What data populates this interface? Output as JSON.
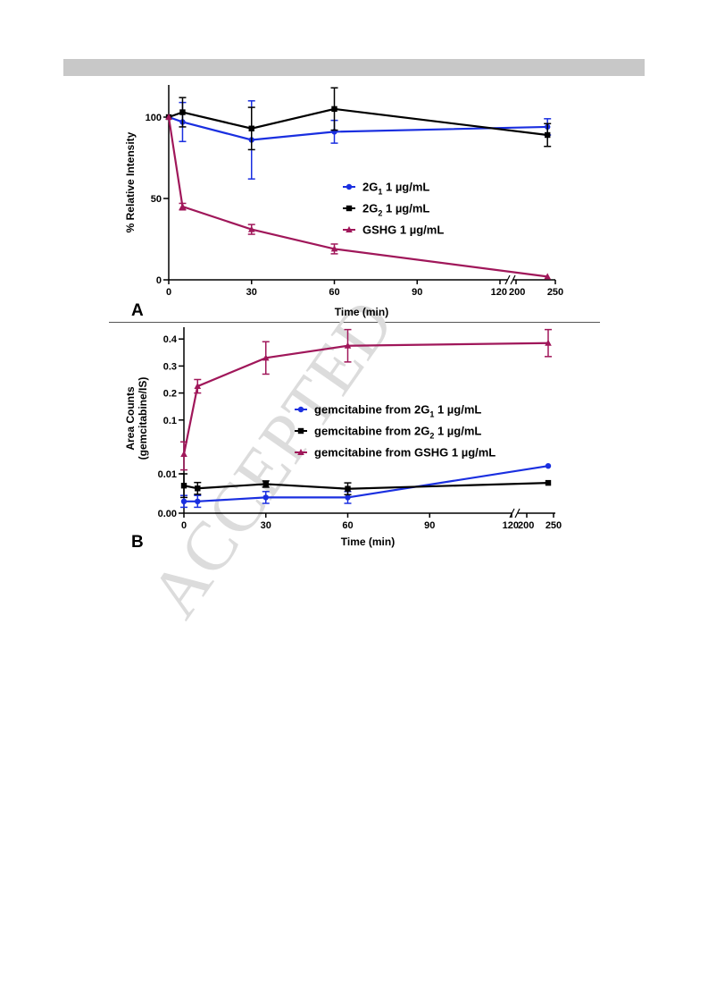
{
  "watermark": "ACCEPTED",
  "chart_data": [
    {
      "panel": "A",
      "type": "line",
      "xlabel": "Time (min)",
      "ylabel": "% Relative Intensity",
      "x_ticks": [
        0,
        30,
        60,
        90,
        120,
        200,
        250
      ],
      "y_ticks": [
        0,
        50,
        100
      ],
      "x_axis_break": [
        120,
        200
      ],
      "ylim": [
        0,
        115
      ],
      "series": [
        {
          "name": "2G1 1 µg/mL",
          "name_base": "2G",
          "name_sub": "1",
          "name_rest": " 1 µg/mL",
          "color": "#1a2fe0",
          "marker": "circle",
          "x": [
            0,
            5,
            30,
            60,
            240
          ],
          "y": [
            100,
            97,
            86,
            91,
            94
          ],
          "err": [
            0,
            12,
            24,
            7,
            5
          ]
        },
        {
          "name": "2G2 1 µg/mL",
          "name_base": "2G",
          "name_sub": "2",
          "name_rest": " 1 µg/mL",
          "color": "#000000",
          "marker": "square",
          "x": [
            0,
            5,
            30,
            60,
            240
          ],
          "y": [
            100,
            103,
            93,
            105,
            89
          ],
          "err": [
            0,
            9,
            13,
            13,
            7
          ]
        },
        {
          "name": "GSHG 1 µg/mL",
          "name_base": "GSHG 1 µg/mL",
          "name_sub": "",
          "name_rest": "",
          "color": "#a0175a",
          "marker": "triangle",
          "x": [
            0,
            5,
            30,
            60,
            240
          ],
          "y": [
            100,
            45,
            31,
            19,
            2
          ],
          "err": [
            0,
            2,
            3,
            3,
            0
          ]
        }
      ]
    },
    {
      "panel": "B",
      "type": "line",
      "xlabel": "Time (min)",
      "ylabel_line1": "Area Counts",
      "ylabel_line2": "(gemcitabine/IS)",
      "x_ticks": [
        0,
        30,
        60,
        90,
        120,
        200,
        250
      ],
      "y_ticks_upper": [
        "0.1",
        "0.2",
        "0.3",
        "0.4"
      ],
      "y_ticks_lower": [
        "0.00",
        "0.01"
      ],
      "x_axis_break": [
        120,
        200
      ],
      "series": [
        {
          "name": "gemcitabine from 2G1 1 µg/mL",
          "name_base": "gemcitabine from 2G",
          "name_sub": "1",
          "name_rest": " 1 µg/mL",
          "color": "#1a2fe0",
          "marker": "circle",
          "x": [
            0,
            5,
            30,
            60,
            240
          ],
          "y": [
            0.003,
            0.003,
            0.004,
            0.004,
            0.012
          ],
          "err": [
            0.0015,
            0.0015,
            0.0015,
            0.0015,
            0
          ]
        },
        {
          "name": "gemcitabine from 2G2 1 µg/mL",
          "name_base": "gemcitabine from 2G",
          "name_sub": "2",
          "name_rest": " 1 µg/mL",
          "color": "#000000",
          "marker": "square",
          "x": [
            0,
            5,
            30,
            60,
            240
          ],
          "y": [
            0.007,
            0.0063,
            0.0074,
            0.0062,
            0.0077
          ],
          "err": [
            0.003,
            0.0015,
            0.0008,
            0.0015,
            0
          ]
        },
        {
          "name": "gemcitabine from GSHG 1 µg/mL",
          "name_base": "gemcitabine from GSHG 1 µg/mL",
          "name_sub": "",
          "name_rest": "",
          "color": "#a0175a",
          "marker": "triangle",
          "x": [
            0,
            5,
            30,
            60,
            240
          ],
          "y": [
            0.015,
            0.225,
            0.33,
            0.375,
            0.385
          ],
          "err": [
            0.004,
            0.025,
            0.06,
            0.06,
            0.05
          ]
        }
      ]
    }
  ]
}
